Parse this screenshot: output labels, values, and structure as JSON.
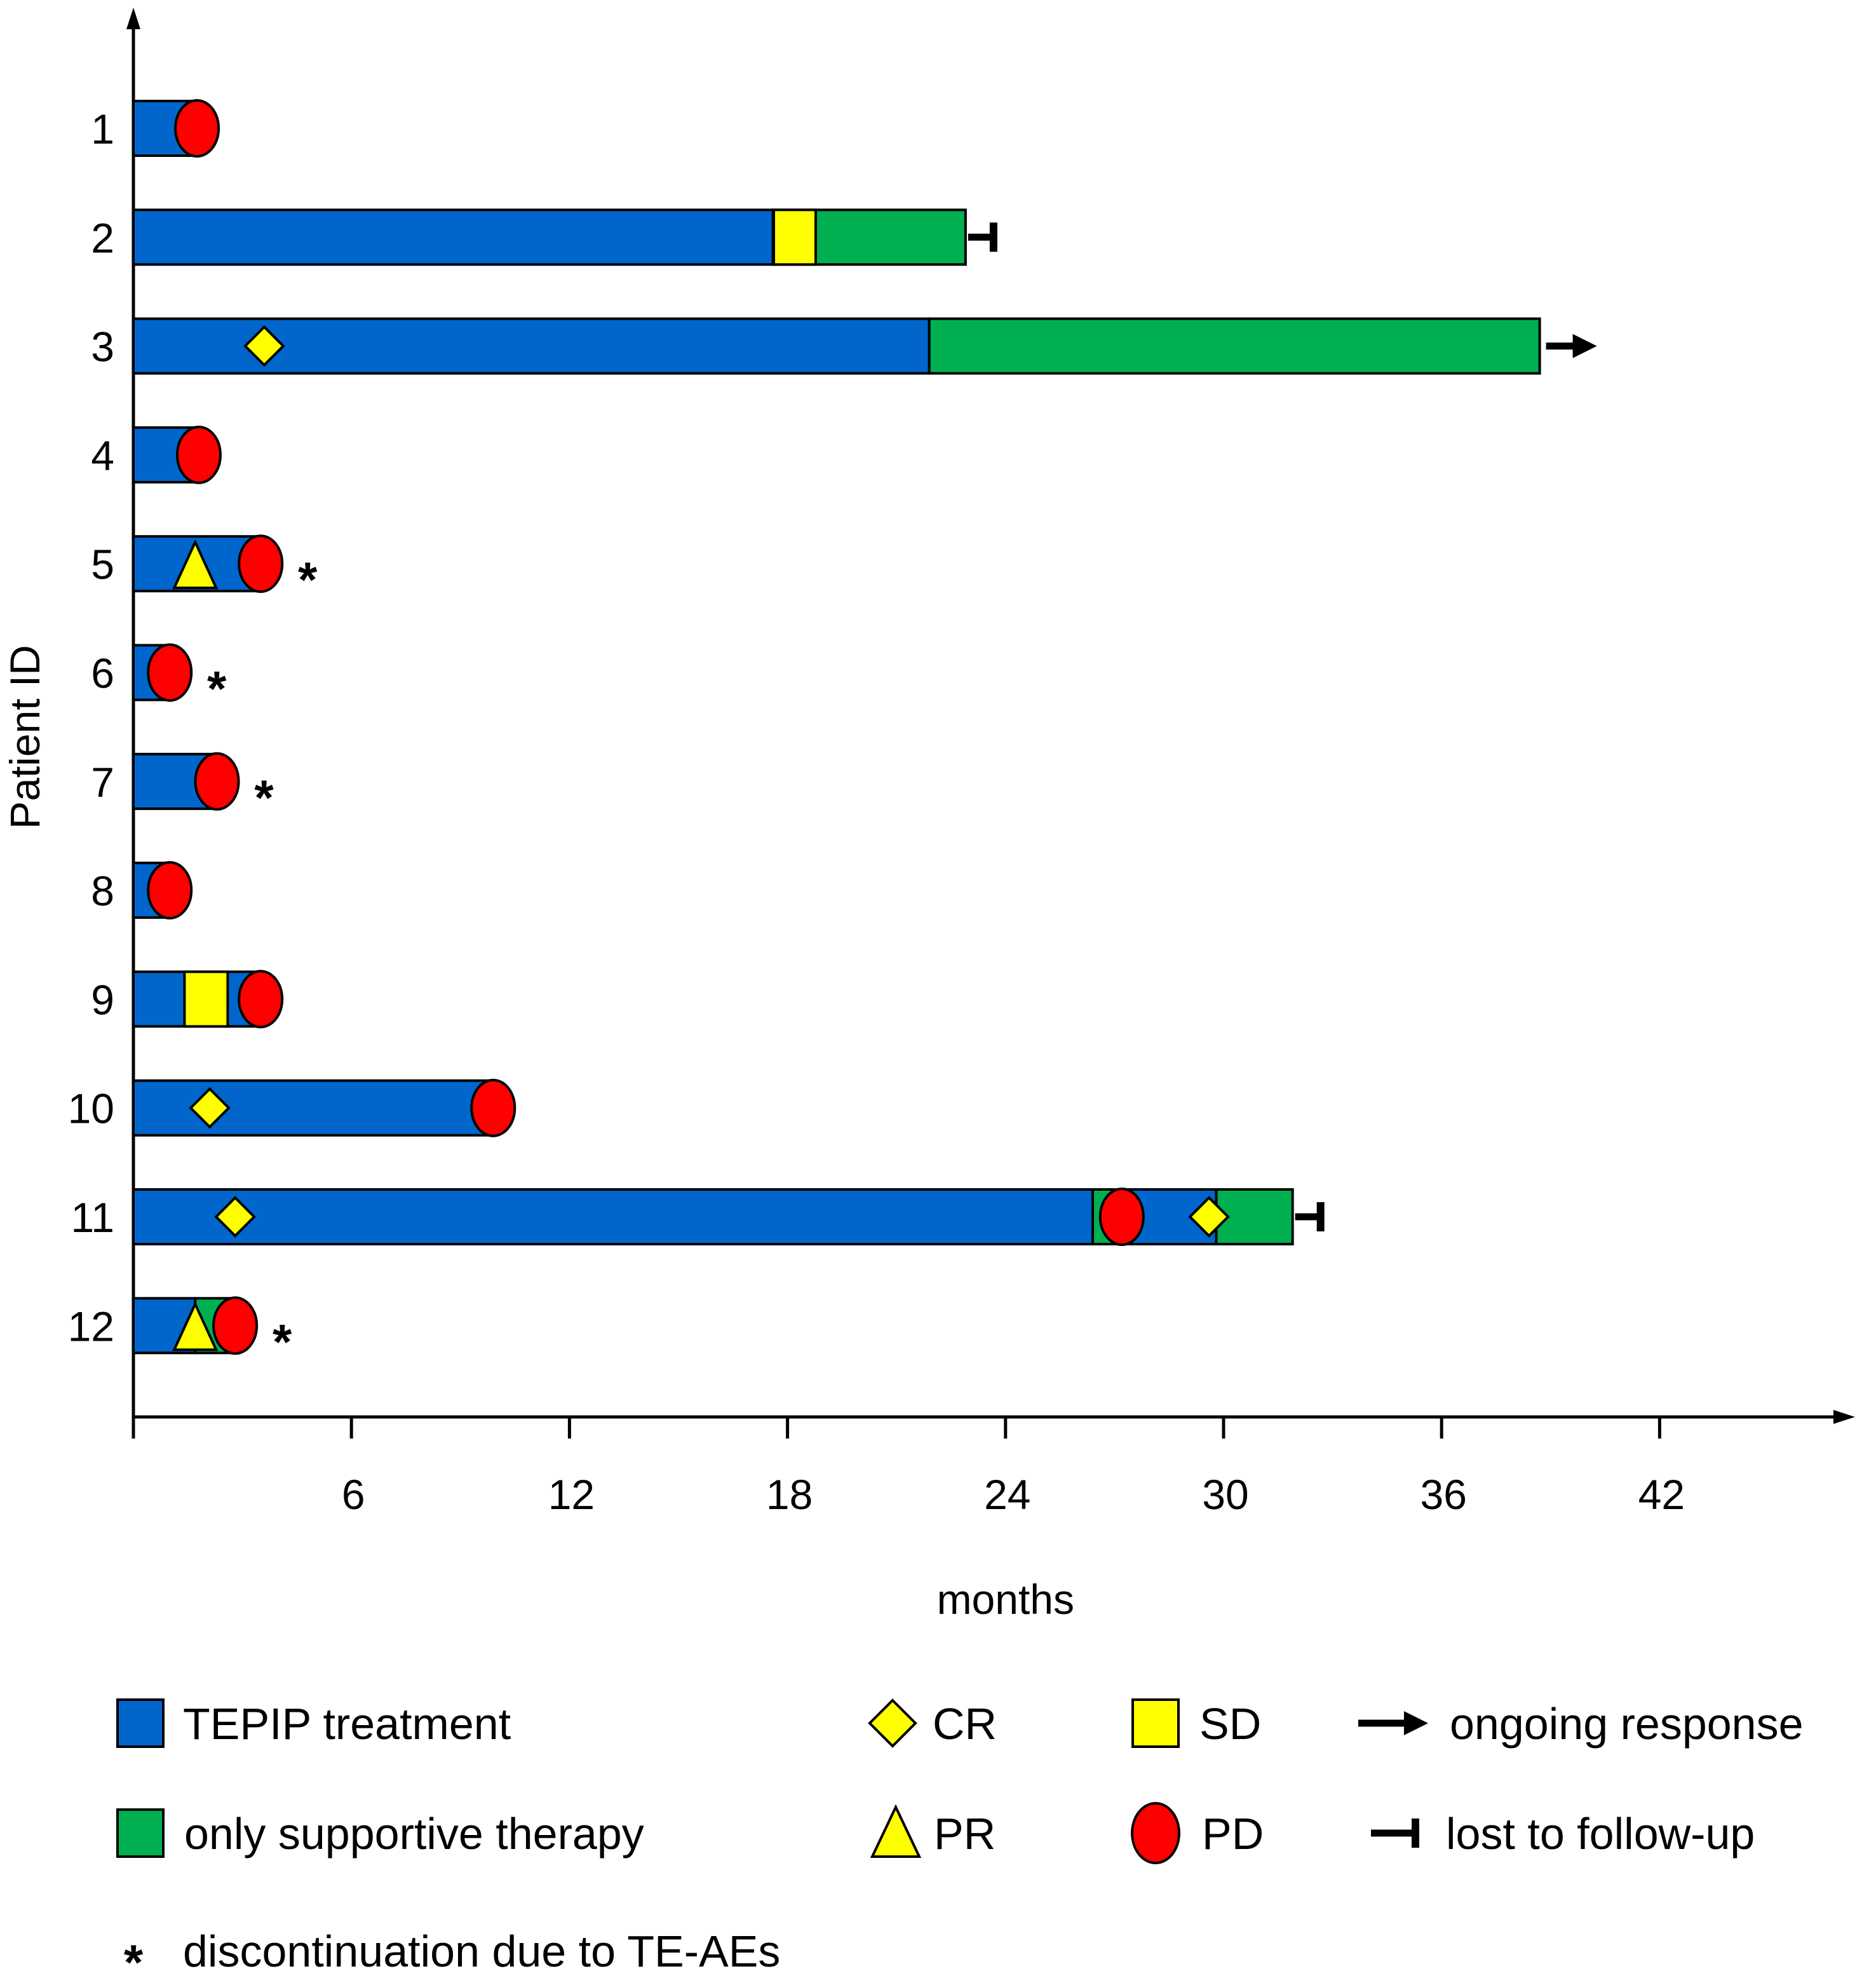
{
  "chart_data": {
    "type": "swimmer",
    "xlabel": "months",
    "ylabel": "Patient ID",
    "xlim": [
      0,
      48
    ],
    "xticks": [
      6,
      12,
      18,
      24,
      30,
      36,
      42
    ],
    "colors": {
      "treatment": "#0066cc",
      "supportive": "#00b050",
      "marker_fill_yellow": "#ffff00",
      "pd_fill": "#ff0000",
      "outline": "#000000"
    },
    "patients": [
      {
        "id": "1",
        "segments": [
          {
            "type": "treatment",
            "start": 0,
            "end": 1.8
          }
        ],
        "events": [
          {
            "type": "PD",
            "month": 1.75
          }
        ],
        "end_marker": null,
        "discontinued": false
      },
      {
        "id": "2",
        "segments": [
          {
            "type": "treatment",
            "start": 0,
            "end": 17.6
          },
          {
            "type": "supportive",
            "start": 17.6,
            "end": 22.9
          }
        ],
        "events": [
          {
            "type": "SD",
            "month": 18.2
          }
        ],
        "end_marker": "lost",
        "discontinued": false
      },
      {
        "id": "3",
        "segments": [
          {
            "type": "treatment",
            "start": 0,
            "end": 21.9
          },
          {
            "type": "supportive",
            "start": 21.9,
            "end": 38.7
          }
        ],
        "events": [
          {
            "type": "CR",
            "month": 3.6
          }
        ],
        "end_marker": "ongoing",
        "discontinued": false
      },
      {
        "id": "4",
        "segments": [
          {
            "type": "treatment",
            "start": 0,
            "end": 1.8
          }
        ],
        "events": [
          {
            "type": "PD",
            "month": 1.8
          }
        ],
        "end_marker": null,
        "discontinued": false
      },
      {
        "id": "5",
        "segments": [
          {
            "type": "treatment",
            "start": 0,
            "end": 3.5
          }
        ],
        "events": [
          {
            "type": "PR",
            "month": 1.7
          },
          {
            "type": "PD",
            "month": 3.5
          }
        ],
        "end_marker": null,
        "discontinued": true
      },
      {
        "id": "6",
        "segments": [
          {
            "type": "treatment",
            "start": 0,
            "end": 1.0
          }
        ],
        "events": [
          {
            "type": "PD",
            "month": 1.0
          }
        ],
        "end_marker": null,
        "discontinued": true
      },
      {
        "id": "7",
        "segments": [
          {
            "type": "treatment",
            "start": 0,
            "end": 2.3
          }
        ],
        "events": [
          {
            "type": "PD",
            "month": 2.3
          }
        ],
        "end_marker": null,
        "discontinued": true
      },
      {
        "id": "8",
        "segments": [
          {
            "type": "treatment",
            "start": 0,
            "end": 1.0
          }
        ],
        "events": [
          {
            "type": "PD",
            "month": 1.0
          }
        ],
        "end_marker": null,
        "discontinued": false
      },
      {
        "id": "9",
        "segments": [
          {
            "type": "treatment",
            "start": 0,
            "end": 3.5
          }
        ],
        "events": [
          {
            "type": "SD",
            "month": 2.0
          },
          {
            "type": "PD",
            "month": 3.5
          }
        ],
        "end_marker": null,
        "discontinued": false
      },
      {
        "id": "10",
        "segments": [
          {
            "type": "treatment",
            "start": 0,
            "end": 9.9
          }
        ],
        "events": [
          {
            "type": "CR",
            "month": 2.1
          },
          {
            "type": "PD",
            "month": 9.9
          }
        ],
        "end_marker": null,
        "discontinued": false
      },
      {
        "id": "11",
        "segments": [
          {
            "type": "treatment",
            "start": 0,
            "end": 26.4
          },
          {
            "type": "supportive",
            "start": 26.4,
            "end": 27.2
          },
          {
            "type": "treatment",
            "start": 27.2,
            "end": 29.8
          },
          {
            "type": "supportive",
            "start": 29.8,
            "end": 31.9
          }
        ],
        "events": [
          {
            "type": "CR",
            "month": 2.8
          },
          {
            "type": "PD",
            "month": 27.2
          },
          {
            "type": "CR",
            "month": 29.6
          }
        ],
        "end_marker": "lost",
        "discontinued": false
      },
      {
        "id": "12",
        "segments": [
          {
            "type": "treatment",
            "start": 0,
            "end": 1.7
          },
          {
            "type": "supportive",
            "start": 1.7,
            "end": 2.8
          }
        ],
        "events": [
          {
            "type": "PR",
            "month": 1.7
          },
          {
            "type": "PD",
            "month": 2.8
          }
        ],
        "end_marker": null,
        "discontinued": true
      }
    ],
    "legend": [
      {
        "key": "treatment",
        "label": "TEPIP treatment"
      },
      {
        "key": "CR",
        "label": "CR"
      },
      {
        "key": "SD",
        "label": "SD"
      },
      {
        "key": "ongoing",
        "label": "ongoing response"
      },
      {
        "key": "supportive",
        "label": "only supportive therapy"
      },
      {
        "key": "PR",
        "label": "PR"
      },
      {
        "key": "PD",
        "label": "PD"
      },
      {
        "key": "lost",
        "label": "lost to follow-up"
      },
      {
        "key": "discontinued",
        "label": "discontinuation due to TE-AEs"
      }
    ],
    "discontinuation_symbol": "*"
  }
}
